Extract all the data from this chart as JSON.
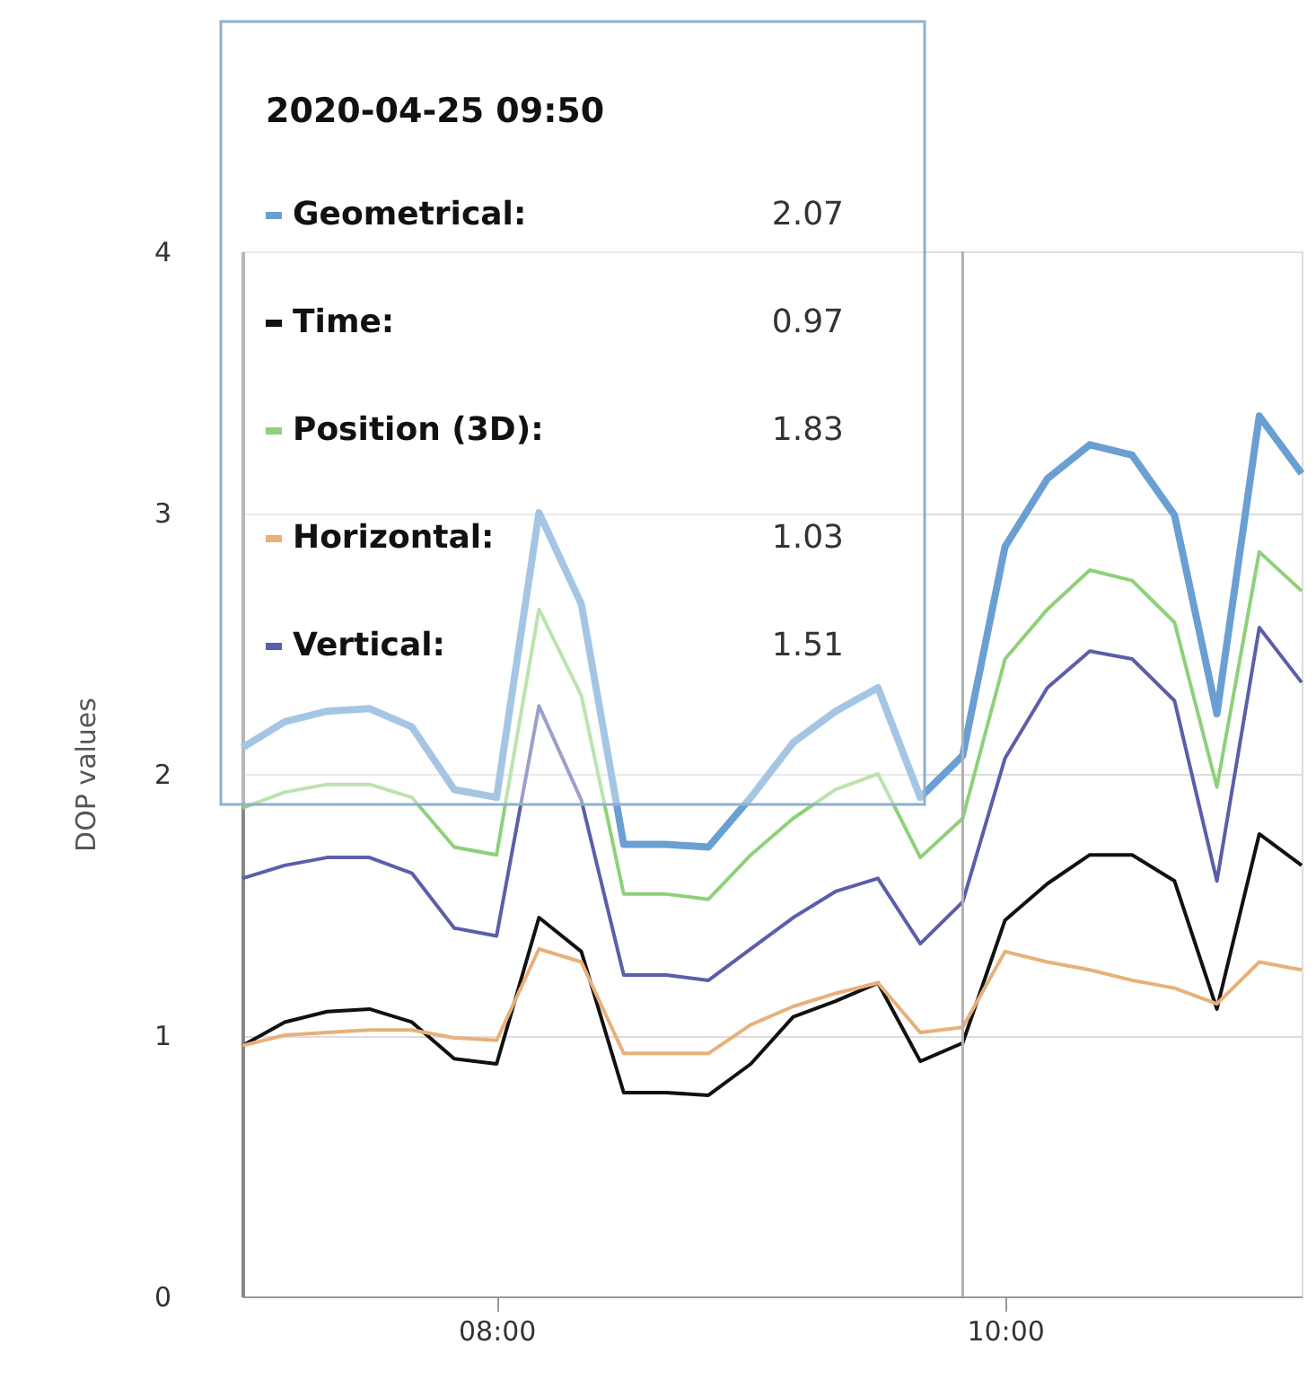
{
  "chart_data": {
    "type": "line",
    "ylabel": "DOP values",
    "x": [
      "2020-04-25T07:00",
      "2020-04-25T07:10",
      "2020-04-25T07:20",
      "2020-04-25T07:30",
      "2020-04-25T07:40",
      "2020-04-25T07:50",
      "2020-04-25T08:00",
      "2020-04-25T08:10",
      "2020-04-25T08:20",
      "2020-04-25T08:30",
      "2020-04-25T08:40",
      "2020-04-25T08:50",
      "2020-04-25T09:00",
      "2020-04-25T09:10",
      "2020-04-25T09:20",
      "2020-04-25T09:30",
      "2020-04-25T09:40",
      "2020-04-25T09:50",
      "2020-04-25T10:00",
      "2020-04-25T10:10",
      "2020-04-25T10:20",
      "2020-04-25T10:30",
      "2020-04-25T10:40",
      "2020-04-25T10:50",
      "2020-04-25T11:00",
      "2020-04-25T11:10"
    ],
    "series": [
      {
        "name": "Geometrical:",
        "color": "#6a9fd4",
        "values": [
          2.1,
          2.2,
          2.24,
          2.25,
          2.18,
          1.94,
          1.91,
          3.0,
          2.65,
          1.73,
          1.73,
          1.72,
          1.91,
          2.12,
          2.24,
          2.33,
          1.91,
          2.07,
          2.87,
          3.13,
          3.26,
          3.22,
          2.99,
          2.23,
          3.37,
          3.15
        ]
      },
      {
        "name": "Time:",
        "color": "#111111",
        "values": [
          0.96,
          1.05,
          1.09,
          1.1,
          1.05,
          0.91,
          0.89,
          1.45,
          1.32,
          0.78,
          0.78,
          0.77,
          0.89,
          1.07,
          1.13,
          1.2,
          0.9,
          0.97,
          1.44,
          1.58,
          1.69,
          1.69,
          1.59,
          1.1,
          1.77,
          1.65
        ]
      },
      {
        "name": "Position (3D):",
        "color": "#8fd07a",
        "values": [
          1.87,
          1.93,
          1.96,
          1.96,
          1.91,
          1.72,
          1.69,
          2.63,
          2.3,
          1.54,
          1.54,
          1.52,
          1.69,
          1.83,
          1.94,
          2.0,
          1.68,
          1.83,
          2.44,
          2.63,
          2.78,
          2.74,
          2.58,
          1.95,
          2.85,
          2.7
        ]
      },
      {
        "name": "Horizontal:",
        "color": "#e8b07a",
        "values": [
          0.96,
          1.0,
          1.01,
          1.02,
          1.02,
          0.99,
          0.98,
          1.33,
          1.28,
          0.93,
          0.93,
          0.93,
          1.04,
          1.11,
          1.16,
          1.2,
          1.01,
          1.03,
          1.32,
          1.28,
          1.25,
          1.21,
          1.18,
          1.12,
          1.28,
          1.25
        ]
      },
      {
        "name": "Vertical:",
        "color": "#5b5fa8",
        "values": [
          1.6,
          1.65,
          1.68,
          1.68,
          1.62,
          1.41,
          1.38,
          2.26,
          1.9,
          1.23,
          1.23,
          1.21,
          1.33,
          1.45,
          1.55,
          1.6,
          1.35,
          1.51,
          2.06,
          2.33,
          2.47,
          2.44,
          2.28,
          1.59,
          2.56,
          2.35
        ]
      }
    ],
    "xlim": [
      "2020-04-25T07:00",
      "2020-04-25T11:10"
    ],
    "xticks": [
      {
        "value": "2020-04-25T08:00",
        "label": "08:00"
      },
      {
        "value": "2020-04-25T10:00",
        "label": "10:00"
      }
    ],
    "ylim": [
      0,
      4
    ],
    "yticks": [
      0,
      1,
      2,
      3,
      4
    ],
    "grid": "y",
    "legend": "top left",
    "marker": "none",
    "line_style": "solid",
    "ref_lines": [
      {
        "axis": "x",
        "value": "2020-04-25T09:50",
        "color": "#b0b0b0"
      }
    ],
    "annotations": [
      "2020-04-25 09:50",
      "2.07",
      "0.97",
      "1.83",
      "1.03",
      "1.51"
    ]
  }
}
